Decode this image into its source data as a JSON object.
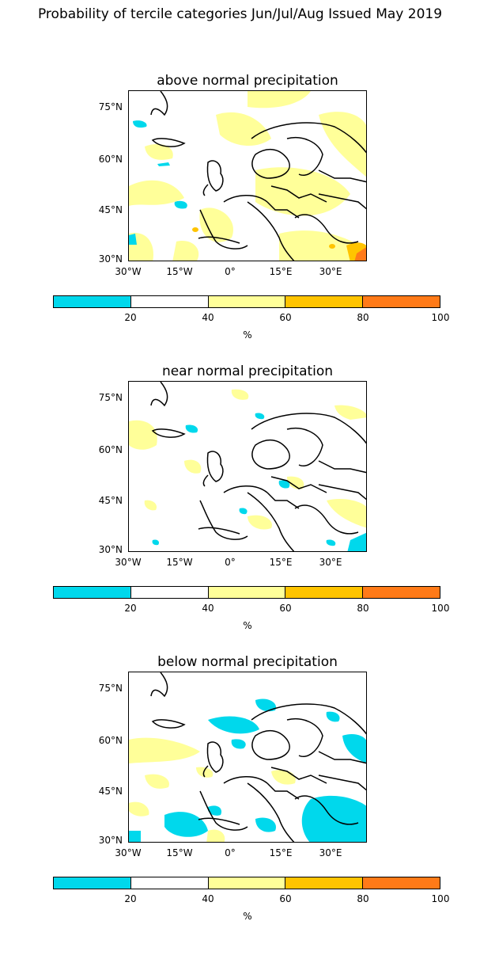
{
  "title": "Probability of tercile categories Jun/Jul/Aug Issued May 2019",
  "lat_labels": [
    "75°N",
    "60°N",
    "45°N",
    "30°N"
  ],
  "lon_labels": [
    "30°W",
    "15°W",
    "0°",
    "15°E",
    "30°E"
  ],
  "colorbar": {
    "colors": [
      "#00d8ec",
      "#ffffff",
      "#ffff99",
      "#ffc400",
      "#ff7a18"
    ],
    "ticks": [
      "20",
      "40",
      "60",
      "80",
      "100"
    ],
    "unit": "%"
  },
  "panels": [
    {
      "title": "above normal precipitation"
    },
    {
      "title": "near normal precipitation"
    },
    {
      "title": "below normal precipitation"
    }
  ]
}
